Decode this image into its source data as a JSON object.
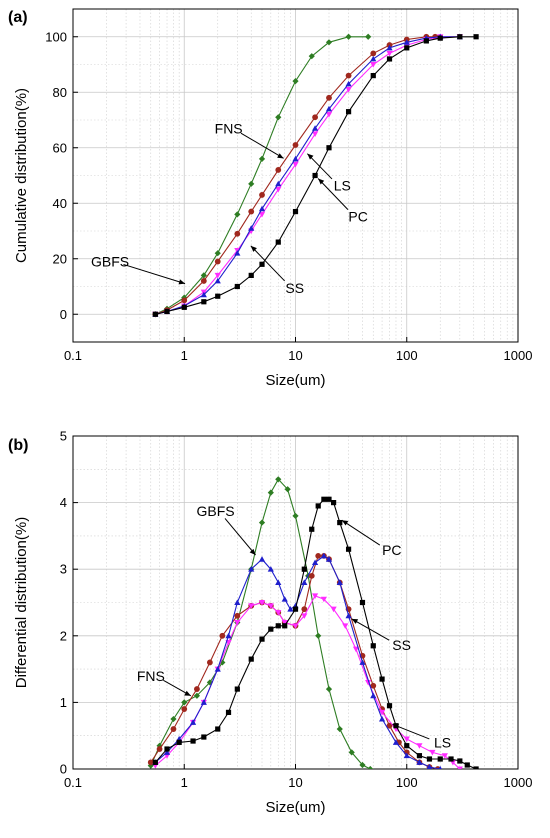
{
  "chart_data": [
    {
      "type": "line",
      "panel_label": "(a)",
      "xlabel": "Size(um)",
      "ylabel": "Cumulative distribution(%)",
      "xscale": "log",
      "xlim": [
        0.1,
        1000
      ],
      "ylim": [
        -10,
        110
      ],
      "xticks": [
        0.1,
        1,
        10,
        100,
        1000
      ],
      "xtick_labels": [
        "0.1",
        "1",
        "10",
        "100",
        "1000"
      ],
      "yticks": [
        0,
        20,
        40,
        60,
        80,
        100
      ],
      "ytick_labels": [
        "0",
        "20",
        "40",
        "60",
        "80",
        "100"
      ],
      "grid": true,
      "series": [
        {
          "name": "GBFS",
          "color": "#2e7d23",
          "marker": "diamond",
          "x": [
            0.55,
            0.7,
            1.0,
            1.5,
            2.0,
            3.0,
            4.0,
            5.0,
            7.0,
            10.0,
            14.0,
            20.0,
            30.0,
            45.0
          ],
          "y": [
            0,
            2,
            6,
            14,
            22,
            36,
            47,
            56,
            71,
            84,
            93,
            98,
            100,
            100
          ]
        },
        {
          "name": "FNS",
          "color": "#a0281e",
          "marker": "circle",
          "x": [
            0.55,
            0.7,
            1.0,
            1.5,
            2.0,
            3.0,
            4.0,
            5.0,
            7.0,
            10.0,
            15.0,
            20.0,
            30.0,
            50.0,
            70.0,
            100.0,
            150.0,
            180.0
          ],
          "y": [
            0,
            1.5,
            5,
            12,
            19,
            29,
            37,
            43,
            52,
            61,
            71,
            78,
            86,
            94,
            97,
            99,
            100,
            100
          ]
        },
        {
          "name": "LS",
          "color": "#ff2cff",
          "marker": "triangle-down",
          "x": [
            0.55,
            0.7,
            1.0,
            1.5,
            2.0,
            3.0,
            4.0,
            5.0,
            7.0,
            10.0,
            15.0,
            20.0,
            30.0,
            50.0,
            70.0,
            100.0,
            150.0,
            200.0,
            300.0
          ],
          "y": [
            0,
            1,
            3,
            8,
            14,
            23,
            30,
            36,
            45,
            54,
            65,
            72,
            81,
            90,
            94,
            97,
            99,
            100,
            100
          ]
        },
        {
          "name": "SS",
          "color": "#1f1fcc",
          "marker": "triangle-up",
          "x": [
            0.55,
            0.7,
            1.0,
            1.5,
            2.0,
            3.0,
            4.0,
            5.0,
            7.0,
            10.0,
            15.0,
            20.0,
            30.0,
            50.0,
            70.0,
            100.0,
            150.0,
            200.0,
            300.0
          ],
          "y": [
            0,
            1,
            3,
            7,
            12,
            22,
            31,
            38,
            47,
            56,
            67,
            74,
            83,
            92,
            96,
            98,
            99.5,
            100,
            100
          ]
        },
        {
          "name": "PC",
          "color": "#000000",
          "marker": "square",
          "x": [
            0.55,
            0.7,
            1.0,
            1.5,
            2.0,
            3.0,
            4.0,
            5.0,
            7.0,
            10.0,
            15.0,
            20.0,
            30.0,
            50.0,
            70.0,
            100.0,
            150.0,
            200.0,
            300.0,
            420.0
          ],
          "y": [
            0,
            1,
            2.5,
            4.5,
            6.5,
            10,
            14,
            18,
            26,
            37,
            50,
            60,
            73,
            86,
            92,
            96,
            98.5,
            99.5,
            100,
            100
          ]
        }
      ],
      "annotations": [
        {
          "text": "GBFS",
          "series": "GBFS",
          "x": 1.2
        },
        {
          "text": "FNS",
          "series": "FNS",
          "x": 8.5
        },
        {
          "text": "LS",
          "series": "LS",
          "x": 12
        },
        {
          "text": "PC",
          "series": "PC",
          "x": 15
        },
        {
          "text": "SS",
          "series": "SS",
          "x": 3.5
        }
      ]
    },
    {
      "type": "line",
      "panel_label": "(b)",
      "xlabel": "Size(um)",
      "ylabel": "Differential distribution(%)",
      "xscale": "log",
      "xlim": [
        0.1,
        1000
      ],
      "ylim": [
        0,
        5
      ],
      "xticks": [
        0.1,
        1,
        10,
        100,
        1000
      ],
      "xtick_labels": [
        "0.1",
        "1",
        "10",
        "100",
        "1000"
      ],
      "yticks": [
        0,
        1,
        2,
        3,
        4,
        5
      ],
      "ytick_labels": [
        "0",
        "1",
        "2",
        "3",
        "4",
        "5"
      ],
      "grid": true,
      "series": [
        {
          "name": "GBFS",
          "color": "#2e7d23",
          "marker": "diamond",
          "x": [
            0.5,
            0.6,
            0.8,
            1.0,
            1.3,
            1.7,
            2.2,
            3.0,
            4.0,
            5.0,
            6.0,
            7.0,
            8.5,
            10.0,
            13.0,
            16.0,
            20.0,
            25.0,
            32.0,
            40.0,
            47.0
          ],
          "y": [
            0.05,
            0.35,
            0.75,
            1.0,
            1.1,
            1.3,
            1.6,
            2.2,
            3.0,
            3.7,
            4.15,
            4.35,
            4.2,
            3.8,
            2.9,
            2.0,
            1.2,
            0.6,
            0.25,
            0.06,
            0
          ]
        },
        {
          "name": "FNS",
          "color": "#a0281e",
          "marker": "circle",
          "x": [
            0.5,
            0.6,
            0.8,
            1.0,
            1.3,
            1.7,
            2.2,
            3.0,
            4.0,
            5.0,
            6.0,
            7.0,
            8.0,
            10.0,
            12.0,
            14.0,
            16.0,
            18.0,
            20.0,
            25.0,
            30.0,
            40.0,
            50.0,
            60.0,
            70.0,
            85.0,
            100.0,
            130.0,
            160.0,
            190.0
          ],
          "y": [
            0.1,
            0.3,
            0.6,
            0.9,
            1.2,
            1.6,
            2.0,
            2.3,
            2.45,
            2.5,
            2.45,
            2.35,
            2.2,
            2.15,
            2.4,
            2.9,
            3.2,
            3.2,
            3.15,
            2.8,
            2.4,
            1.7,
            1.25,
            0.9,
            0.65,
            0.4,
            0.25,
            0.1,
            0.03,
            0
          ]
        },
        {
          "name": "LS",
          "color": "#ff2cff",
          "marker": "triangle-down",
          "x": [
            0.55,
            0.7,
            0.9,
            1.2,
            1.5,
            2.0,
            2.5,
            3.0,
            4.0,
            5.0,
            6.0,
            7.0,
            8.0,
            10.0,
            12.0,
            15.0,
            18.0,
            22.0,
            28.0,
            35.0,
            45.0,
            60.0,
            80.0,
            100.0,
            130.0,
            170.0,
            220.0,
            260.0,
            300.0
          ],
          "y": [
            0.05,
            0.2,
            0.4,
            0.7,
            1.0,
            1.5,
            1.9,
            2.2,
            2.45,
            2.5,
            2.45,
            2.35,
            2.2,
            2.15,
            2.3,
            2.6,
            2.55,
            2.4,
            2.15,
            1.8,
            1.3,
            0.85,
            0.6,
            0.45,
            0.35,
            0.25,
            0.2,
            0.1,
            0
          ]
        },
        {
          "name": "SS",
          "color": "#1f1fcc",
          "marker": "triangle-up",
          "x": [
            0.55,
            0.7,
            0.9,
            1.2,
            1.5,
            2.0,
            2.5,
            3.0,
            4.0,
            5.0,
            6.0,
            7.0,
            8.0,
            9.0,
            10.0,
            12.0,
            15.0,
            18.0,
            20.0,
            25.0,
            30.0,
            40.0,
            50.0,
            60.0,
            80.0,
            100.0,
            130.0,
            160.0,
            200.0
          ],
          "y": [
            0.1,
            0.25,
            0.45,
            0.7,
            1.0,
            1.5,
            2.0,
            2.5,
            3.0,
            3.15,
            3.0,
            2.8,
            2.55,
            2.4,
            2.45,
            2.8,
            3.1,
            3.2,
            3.15,
            2.8,
            2.3,
            1.6,
            1.1,
            0.75,
            0.4,
            0.2,
            0.1,
            0.03,
            0
          ]
        },
        {
          "name": "PC",
          "color": "#000000",
          "marker": "square",
          "x": [
            0.55,
            0.7,
            0.9,
            1.2,
            1.5,
            2.0,
            2.5,
            3.0,
            4.0,
            5.0,
            6.0,
            7.0,
            8.0,
            10.0,
            12.0,
            14.0,
            16.0,
            18.0,
            20.0,
            22.0,
            25.0,
            30.0,
            40.0,
            50.0,
            60.0,
            70.0,
            80.0,
            100.0,
            130.0,
            160.0,
            200.0,
            250.0,
            300.0,
            350.0,
            420.0
          ],
          "y": [
            0.1,
            0.3,
            0.4,
            0.42,
            0.48,
            0.6,
            0.85,
            1.2,
            1.65,
            1.95,
            2.1,
            2.15,
            2.15,
            2.4,
            3.0,
            3.6,
            3.95,
            4.05,
            4.05,
            4.0,
            3.7,
            3.3,
            2.5,
            1.85,
            1.35,
            0.95,
            0.65,
            0.35,
            0.2,
            0.15,
            0.15,
            0.15,
            0.12,
            0.06,
            0
          ]
        }
      ],
      "annotations": [
        {
          "text": "GBFS",
          "series": "GBFS",
          "x": 4.2
        },
        {
          "text": "PC",
          "series": "PC",
          "x": 24
        },
        {
          "text": "SS",
          "series": "SS",
          "x": 30
        },
        {
          "text": "FNS",
          "series": "FNS",
          "x": 1.1
        },
        {
          "text": "LS",
          "series": "LS",
          "x": 70
        }
      ]
    }
  ]
}
